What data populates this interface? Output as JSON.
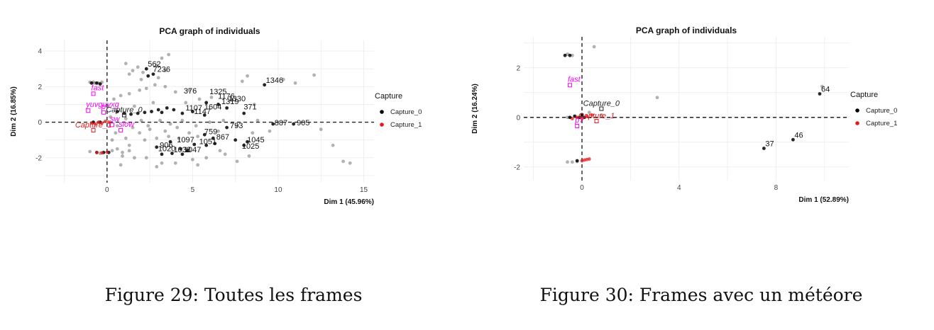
{
  "chart_data": [
    {
      "type": "scatter",
      "title": "PCA graph of individuals",
      "xlabel": "Dim 1 (45.96%)",
      "ylabel": "Dim 2 (16.85%)",
      "xlim": [
        -3.6,
        15.6
      ],
      "ylim": [
        -3.4,
        4.6
      ],
      "xticks": [
        0,
        5,
        10,
        15
      ],
      "yticks": [
        -2,
        0,
        2,
        4
      ],
      "grid": true,
      "legend": {
        "title": "Capture",
        "position": "right",
        "entries": [
          "Capture_0",
          "Capture_1"
        ]
      },
      "series": [
        {
          "name": "Capture_0",
          "color": "#000000",
          "points": [
            [
              2.3,
              3.0
            ],
            [
              2.7,
              2.7
            ],
            [
              2.4,
              2.6
            ],
            [
              9.2,
              2.1
            ],
            [
              5.8,
              1.1
            ],
            [
              6.5,
              1.0
            ],
            [
              7.0,
              0.8
            ],
            [
              8.0,
              0.5
            ],
            [
              3.5,
              0.8
            ],
            [
              3.9,
              0.7
            ],
            [
              4.4,
              0.5
            ],
            [
              5.0,
              0.6
            ],
            [
              5.7,
              0.4
            ],
            [
              0.6,
              0.6
            ],
            [
              1.0,
              0.5
            ],
            [
              1.4,
              0.45
            ],
            [
              1.8,
              0.5
            ],
            [
              2.2,
              0.55
            ],
            [
              2.6,
              0.6
            ],
            [
              3.0,
              0.7
            ],
            [
              3.2,
              0.55
            ],
            [
              9.7,
              -0.1
            ],
            [
              10.9,
              -0.1
            ],
            [
              7.0,
              -0.3
            ],
            [
              5.7,
              -0.7
            ],
            [
              6.2,
              -0.9
            ],
            [
              7.5,
              -1.0
            ],
            [
              8.0,
              -1.3
            ],
            [
              8.2,
              -1.1
            ],
            [
              2.9,
              -1.4
            ],
            [
              3.7,
              -1.1
            ],
            [
              4.3,
              -1.5
            ],
            [
              4.7,
              -1.6
            ],
            [
              5.1,
              -1.25
            ],
            [
              5.8,
              -1.3
            ],
            [
              6.3,
              -1.2
            ],
            [
              3.2,
              -1.8
            ],
            [
              3.8,
              -1.75
            ],
            [
              4.4,
              -1.8
            ],
            [
              -0.9,
              2.2
            ],
            [
              -0.6,
              2.2
            ],
            [
              -0.4,
              2.15
            ],
            [
              -0.8,
              0.0
            ],
            [
              -0.4,
              0.0
            ],
            [
              -0.6,
              -1.7
            ],
            [
              -0.2,
              -1.7
            ],
            [
              0.1,
              -1.7
            ]
          ],
          "labels": [
            {
              "text": "562",
              "x": 2.3,
              "y": 3.0
            },
            {
              "text": "7236",
              "x": 2.6,
              "y": 2.7
            },
            {
              "text": "1346",
              "x": 9.2,
              "y": 2.1
            },
            {
              "text": "376",
              "x": 4.4,
              "y": 1.5
            },
            {
              "text": "1325",
              "x": 5.9,
              "y": 1.45
            },
            {
              "text": "1176",
              "x": 6.4,
              "y": 1.2
            },
            {
              "text": "1330",
              "x": 7.0,
              "y": 1.05
            },
            {
              "text": "1319",
              "x": 6.6,
              "y": 0.9
            },
            {
              "text": "371",
              "x": 7.9,
              "y": 0.6
            },
            {
              "text": "1604",
              "x": 5.6,
              "y": 0.6
            },
            {
              "text": "1107",
              "x": 4.5,
              "y": 0.55
            },
            {
              "text": "1147",
              "x": 5.0,
              "y": 0.35
            },
            {
              "text": "887",
              "x": 9.7,
              "y": -0.3
            },
            {
              "text": "905",
              "x": 11.0,
              "y": -0.3
            },
            {
              "text": "793",
              "x": 7.1,
              "y": -0.45
            },
            {
              "text": "759",
              "x": 5.6,
              "y": -0.8
            },
            {
              "text": "867",
              "x": 6.3,
              "y": -1.1
            },
            {
              "text": "1045",
              "x": 8.1,
              "y": -1.25
            },
            {
              "text": "1025",
              "x": 7.8,
              "y": -1.6
            },
            {
              "text": "1051",
              "x": 5.3,
              "y": -1.35
            },
            {
              "text": "1097",
              "x": 4.0,
              "y": -1.25
            },
            {
              "text": "906",
              "x": 3.0,
              "y": -1.55
            },
            {
              "text": "1020",
              "x": 2.9,
              "y": -1.75
            },
            {
              "text": "1038",
              "x": 3.8,
              "y": -1.8
            },
            {
              "text": "1047",
              "x": 4.4,
              "y": -1.8
            }
          ]
        },
        {
          "name": "Capture_1",
          "color": "#e41a1c",
          "points": [
            [
              -0.9,
              -0.05
            ],
            [
              -0.7,
              -0.1
            ],
            [
              -0.5,
              0.0
            ],
            [
              -0.3,
              -0.05
            ],
            [
              -0.1,
              0.05
            ],
            [
              0.1,
              0.0
            ],
            [
              -0.6,
              -1.7
            ],
            [
              -0.3,
              -1.72
            ],
            [
              0.0,
              -1.68
            ]
          ]
        }
      ],
      "background_points": [
        [
          1.1,
          3.3
        ],
        [
          1.5,
          2.9
        ],
        [
          1.8,
          3.1
        ],
        [
          2.1,
          2.8
        ],
        [
          2.9,
          3.2
        ],
        [
          3.2,
          3.6
        ],
        [
          3.6,
          3.8
        ],
        [
          1.3,
          2.7
        ],
        [
          2.0,
          2.4
        ],
        [
          3.0,
          2.5
        ],
        [
          3.4,
          2.9
        ],
        [
          7.9,
          2.3
        ],
        [
          8.2,
          2.6
        ],
        [
          10.3,
          2.4
        ],
        [
          11.0,
          2.2
        ],
        [
          12.1,
          2.65
        ],
        [
          0.4,
          1.3
        ],
        [
          0.8,
          1.5
        ],
        [
          1.3,
          1.6
        ],
        [
          1.9,
          1.8
        ],
        [
          2.3,
          1.9
        ],
        [
          2.8,
          2.1
        ],
        [
          3.4,
          2.0
        ],
        [
          4.0,
          1.7
        ],
        [
          4.8,
          1.8
        ],
        [
          5.4,
          1.3
        ],
        [
          6.1,
          1.4
        ],
        [
          7.3,
          1.25
        ],
        [
          8.6,
          1.0
        ],
        [
          1.6,
          0.9
        ],
        [
          2.7,
          1.1
        ],
        [
          4.6,
          1.1
        ],
        [
          0.5,
          -0.6
        ],
        [
          1.1,
          -0.9
        ],
        [
          1.9,
          -0.6
        ],
        [
          2.5,
          -0.4
        ],
        [
          3.4,
          -0.5
        ],
        [
          4.1,
          -0.3
        ],
        [
          4.8,
          -0.6
        ],
        [
          6.5,
          -0.5
        ],
        [
          8.5,
          -0.6
        ],
        [
          9.5,
          -0.5
        ],
        [
          12.5,
          -0.4
        ],
        [
          13.2,
          -1.3
        ],
        [
          13.8,
          -2.2
        ],
        [
          14.2,
          -2.3
        ],
        [
          0.3,
          -1.0
        ],
        [
          1.3,
          -1.3
        ],
        [
          2.2,
          -1.0
        ],
        [
          2.9,
          -0.9
        ],
        [
          3.6,
          -0.8
        ],
        [
          4.2,
          -0.9
        ],
        [
          5.3,
          -0.8
        ],
        [
          0.9,
          -1.9
        ],
        [
          1.6,
          -2.0
        ],
        [
          2.3,
          -2.0
        ],
        [
          3.2,
          -2.3
        ],
        [
          4.0,
          -2.3
        ],
        [
          5.0,
          -2.1
        ],
        [
          5.8,
          -2.0
        ],
        [
          6.9,
          -1.8
        ],
        [
          7.6,
          -2.2
        ],
        [
          8.3,
          -1.9
        ],
        [
          0.8,
          -2.4
        ],
        [
          2.9,
          -2.5
        ],
        [
          5.3,
          -2.4
        ],
        [
          6.6,
          -1.6
        ],
        [
          0.2,
          0.3
        ],
        [
          0.6,
          -0.2
        ],
        [
          1.1,
          0.2
        ],
        [
          1.5,
          -0.3
        ],
        [
          2.0,
          0.1
        ],
        [
          2.4,
          -0.2
        ],
        [
          3.1,
          0.1
        ],
        [
          3.7,
          -0.1
        ],
        [
          4.4,
          0.1
        ],
        [
          5.2,
          -0.2
        ],
        [
          6.0,
          0.0
        ],
        [
          6.8,
          0.1
        ],
        [
          7.6,
          -0.2
        ],
        [
          8.8,
          0.1
        ],
        [
          -1.0,
          2.25
        ],
        [
          -0.8,
          2.25
        ],
        [
          -0.7,
          2.2
        ],
        [
          -0.5,
          2.2
        ],
        [
          -0.3,
          2.25
        ],
        [
          -1.0,
          -1.65
        ],
        [
          -0.4,
          -1.75
        ],
        [
          0.3,
          -1.6
        ],
        [
          0.6,
          -1.5
        ],
        [
          0.9,
          -1.7
        ],
        [
          1.3,
          -1.6
        ]
      ],
      "supplementary": {
        "color": "#ff00ff",
        "points": [
          {
            "text": "fast",
            "x": -0.8,
            "y": 1.6
          },
          {
            "text": "yuvguyxg",
            "x": -1.1,
            "y": 0.65
          },
          {
            "text": "p",
            "x": -0.2,
            "y": 0.55
          },
          {
            "text": "slow",
            "x": 0.8,
            "y": -0.45
          },
          {
            "text": "sw",
            "x": 0.3,
            "y": -0.15
          }
        ],
        "capture_labels": [
          {
            "text": "Capture_0",
            "x": 1.0,
            "y": 0.4,
            "color": "#222222"
          },
          {
            "text": "Capture_1",
            "x": -0.8,
            "y": -0.45,
            "color": "#e41a1c"
          }
        ]
      }
    },
    {
      "type": "scatter",
      "title": "PCA graph of individuals",
      "xlabel": "Dim 1 (52.89%)",
      "ylabel": "Dim 2 (16.24%)",
      "xlim": [
        -2.4,
        11.0
      ],
      "ylim": [
        -2.55,
        3.25
      ],
      "xticks": [
        0,
        4,
        8
      ],
      "yticks": [
        -2,
        0,
        2
      ],
      "grid": true,
      "legend": {
        "title": "Capture",
        "position": "right",
        "entries": [
          "Capture_0",
          "Capture_1"
        ]
      },
      "series": [
        {
          "name": "Capture_0",
          "color": "#000000",
          "points": [
            [
              9.8,
              0.95
            ],
            [
              7.5,
              -1.25
            ],
            [
              8.7,
              -0.9
            ],
            [
              -0.7,
              2.5
            ],
            [
              -0.5,
              2.5
            ],
            [
              -0.5,
              0.0
            ],
            [
              -0.3,
              0.05
            ],
            [
              -0.1,
              0.0
            ],
            [
              0.1,
              0.0
            ],
            [
              -0.2,
              -1.75
            ],
            [
              0.0,
              0.1
            ]
          ],
          "labels": [
            {
              "text": "64",
              "x": 9.8,
              "y": 0.95
            },
            {
              "text": "37",
              "x": 7.5,
              "y": -1.25
            },
            {
              "text": "46",
              "x": 8.7,
              "y": -0.9
            }
          ]
        },
        {
          "name": "Capture_1",
          "color": "#e41a1c",
          "points": [
            [
              -0.4,
              -0.05
            ],
            [
              -0.2,
              0.0
            ],
            [
              0.0,
              -0.05
            ],
            [
              0.2,
              0.05
            ],
            [
              0.4,
              0.1
            ],
            [
              0.0,
              -1.75
            ],
            [
              0.1,
              -1.72
            ],
            [
              0.2,
              -1.7
            ],
            [
              0.3,
              -1.68
            ]
          ]
        }
      ],
      "background_points": [
        [
          0.5,
          2.85
        ],
        [
          9.9,
          1.25
        ],
        [
          3.1,
          0.8
        ],
        [
          -0.6,
          2.55
        ],
        [
          -0.4,
          2.5
        ],
        [
          -0.6,
          -1.8
        ],
        [
          -0.4,
          -1.8
        ],
        [
          -0.2,
          -1.78
        ],
        [
          0.8,
          0.1
        ],
        [
          -0.6,
          0.0
        ],
        [
          0.3,
          0.2
        ]
      ],
      "supplementary": {
        "color": "#ff00ff",
        "points": [
          {
            "text": "fast",
            "x": -0.5,
            "y": 1.3
          },
          {
            "text": "p7",
            "x": -0.2,
            "y": -0.35
          }
        ],
        "capture_labels": [
          {
            "text": "Capture_0",
            "x": 0.8,
            "y": 0.35,
            "color": "#222222"
          },
          {
            "text": "Capture_1",
            "x": 0.6,
            "y": -0.15,
            "color": "#e41a1c"
          }
        ]
      }
    }
  ],
  "captions": {
    "left": "Figure 29: Toutes les frames",
    "right": "Figure 30: Frames avec un météore"
  }
}
